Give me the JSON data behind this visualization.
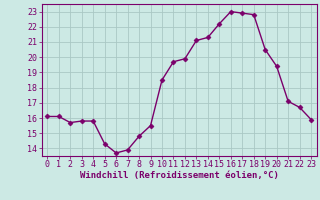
{
  "x": [
    0,
    1,
    2,
    3,
    4,
    5,
    6,
    7,
    8,
    9,
    10,
    11,
    12,
    13,
    14,
    15,
    16,
    17,
    18,
    19,
    20,
    21,
    22,
    23
  ],
  "y": [
    16.1,
    16.1,
    15.7,
    15.8,
    15.8,
    14.3,
    13.7,
    13.9,
    14.8,
    15.5,
    18.5,
    19.7,
    19.9,
    21.1,
    21.3,
    22.2,
    23.0,
    22.9,
    22.8,
    20.5,
    19.4,
    17.1,
    16.7,
    15.9
  ],
  "line_color": "#7B006B",
  "marker": "D",
  "marker_size": 2.5,
  "bg_color": "#cce9e4",
  "grid_color": "#aac8c4",
  "xlabel": "Windchill (Refroidissement éolien,°C)",
  "ylim": [
    13.5,
    23.5
  ],
  "xlim": [
    -0.5,
    23.5
  ],
  "yticks": [
    14,
    15,
    16,
    17,
    18,
    19,
    20,
    21,
    22,
    23
  ],
  "xticks": [
    0,
    1,
    2,
    3,
    4,
    5,
    6,
    7,
    8,
    9,
    10,
    11,
    12,
    13,
    14,
    15,
    16,
    17,
    18,
    19,
    20,
    21,
    22,
    23
  ],
  "label_fontsize": 6.5,
  "tick_fontsize": 6.0,
  "linewidth": 1.0
}
